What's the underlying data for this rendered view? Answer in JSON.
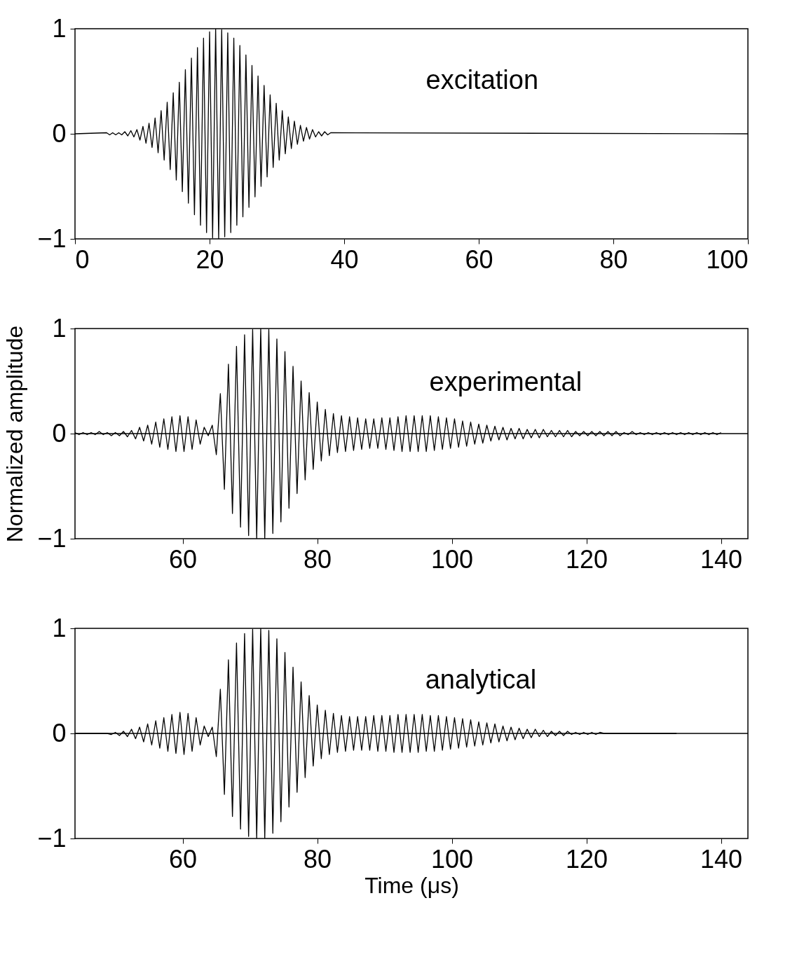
{
  "chart_data": [
    {
      "type": "line",
      "xlim": [
        0,
        100
      ],
      "xticks": [
        0,
        20,
        40,
        60,
        80,
        100
      ],
      "ylim": [
        -1,
        1
      ],
      "yticks": [
        -1,
        0,
        1
      ],
      "annotations": [
        "excitation"
      ],
      "x": [
        0,
        4.7,
        5.15,
        5.6,
        6.05,
        6.5,
        6.95,
        7.4,
        7.85,
        8.3,
        8.75,
        9.2,
        9.65,
        10.1,
        10.55,
        11,
        11.45,
        11.9,
        12.35,
        12.8,
        13.25,
        13.7,
        14.15,
        14.6,
        15.05,
        15.5,
        15.95,
        16.4,
        16.85,
        17.3,
        17.75,
        18.2,
        18.65,
        19.1,
        19.55,
        20,
        20.45,
        20.9,
        21.35,
        21.8,
        22.25,
        22.7,
        23.15,
        23.6,
        24.05,
        24.5,
        24.95,
        25.4,
        25.85,
        26.3,
        26.75,
        27.2,
        27.65,
        28.1,
        28.55,
        29,
        29.45,
        29.9,
        30.35,
        30.8,
        31.25,
        31.7,
        32.15,
        32.6,
        33.05,
        33.5,
        33.95,
        34.4,
        34.85,
        35.3,
        35.75,
        36.2,
        36.65,
        37.1,
        37.55,
        38,
        100
      ],
      "series": [
        {
          "color": "#000000",
          "values": [
            0,
            0.01,
            -0.01,
            0.01,
            -0.01,
            0.01,
            -0.01,
            0.02,
            -0.02,
            0.03,
            -0.03,
            0.04,
            -0.06,
            0.07,
            -0.09,
            0.1,
            -0.13,
            0.15,
            -0.18,
            0.22,
            -0.25,
            0.3,
            -0.34,
            0.39,
            -0.44,
            0.49,
            -0.55,
            0.61,
            -0.66,
            0.72,
            -0.77,
            0.82,
            -0.87,
            0.91,
            -0.94,
            0.97,
            -0.99,
            1,
            -1,
            0.99,
            -0.98,
            0.96,
            -0.94,
            0.91,
            -0.87,
            0.84,
            -0.79,
            0.75,
            -0.7,
            0.65,
            -0.6,
            0.55,
            -0.5,
            0.46,
            -0.41,
            0.37,
            -0.32,
            0.29,
            -0.25,
            0.22,
            -0.19,
            0.16,
            -0.14,
            0.12,
            -0.1,
            0.08,
            -0.07,
            0.06,
            -0.05,
            0.04,
            -0.03,
            0.02,
            -0.02,
            0.02,
            -0.01,
            0.01,
            0
          ]
        }
      ]
    },
    {
      "type": "line",
      "xlim": [
        44,
        144
      ],
      "xticks": [
        60,
        80,
        100,
        120,
        140
      ],
      "ylim": [
        -1,
        1
      ],
      "yticks": [
        -1,
        0,
        1
      ],
      "ylabel": "Normalized amplitude",
      "annotations": [
        "experimental"
      ],
      "ref_lines": [
        {
          "axis": "y",
          "value": 0
        }
      ],
      "x": [
        44,
        44.6,
        45.2,
        45.8,
        46.4,
        47,
        47.6,
        48.2,
        48.8,
        49.4,
        50,
        50.6,
        51.2,
        51.8,
        52.4,
        53,
        53.6,
        54.2,
        54.8,
        55.4,
        56,
        56.6,
        57.2,
        57.8,
        58.4,
        59,
        59.6,
        60.2,
        60.8,
        61.4,
        62,
        62.6,
        63.2,
        63.8,
        64.4,
        65,
        65.6,
        66.2,
        66.8,
        67.4,
        68,
        68.6,
        69.2,
        69.8,
        70.4,
        71,
        71.6,
        72.2,
        72.8,
        73.4,
        74,
        74.6,
        75.2,
        75.8,
        76.4,
        77,
        77.6,
        78.2,
        78.8,
        79.4,
        80,
        80.6,
        81.2,
        81.8,
        82.4,
        83,
        83.6,
        84.2,
        84.8,
        85.4,
        86,
        86.6,
        87.2,
        87.8,
        88.4,
        89,
        89.6,
        90.2,
        90.8,
        91.4,
        92,
        92.6,
        93.2,
        93.8,
        94.4,
        95,
        95.6,
        96.2,
        96.8,
        97.4,
        98,
        98.6,
        99.2,
        99.8,
        100.4,
        101,
        101.6,
        102.2,
        102.8,
        103.4,
        104,
        104.6,
        105.2,
        105.8,
        106.4,
        107,
        107.6,
        108.2,
        108.8,
        109.4,
        110,
        110.6,
        111.2,
        111.8,
        112.4,
        113,
        113.6,
        114.2,
        114.8,
        115.4,
        116,
        116.6,
        117.2,
        117.8,
        118.4,
        119,
        119.6,
        120.2,
        120.8,
        121.4,
        122,
        122.6,
        123.2,
        123.8,
        124.4,
        125,
        125.6,
        126.2,
        126.8,
        127.4,
        128,
        128.6,
        129.2,
        129.8,
        130.4,
        131,
        131.6,
        132.2,
        132.8,
        133.4,
        134,
        134.6,
        135.2,
        135.8,
        136.4,
        137,
        137.6,
        138.2,
        138.8,
        139.4,
        140
      ],
      "series": [
        {
          "color": "#000000",
          "values": [
            0.01,
            -0.01,
            0.01,
            -0.01,
            0.01,
            -0.01,
            0.02,
            -0.01,
            0.01,
            -0.02,
            0.01,
            -0.02,
            0.02,
            -0.03,
            0.03,
            -0.05,
            0.06,
            -0.07,
            0.08,
            -0.1,
            0.11,
            -0.13,
            0.14,
            -0.15,
            0.16,
            -0.17,
            0.17,
            -0.17,
            0.16,
            -0.15,
            0.13,
            -0.1,
            0.06,
            -0.02,
            0.08,
            -0.2,
            0.38,
            -0.53,
            0.66,
            -0.76,
            0.83,
            -0.89,
            0.94,
            -0.97,
            0.99,
            -1,
            1,
            -1,
            0.99,
            -0.95,
            0.9,
            -0.84,
            0.78,
            -0.71,
            0.64,
            -0.57,
            0.5,
            -0.44,
            0.39,
            -0.34,
            0.3,
            -0.26,
            0.23,
            -0.21,
            0.19,
            -0.18,
            0.17,
            -0.17,
            0.16,
            -0.16,
            0.15,
            -0.15,
            0.14,
            -0.14,
            0.14,
            -0.14,
            0.15,
            -0.15,
            0.15,
            -0.16,
            0.16,
            -0.17,
            0.17,
            -0.17,
            0.17,
            -0.17,
            0.17,
            -0.17,
            0.17,
            -0.16,
            0.16,
            -0.15,
            0.15,
            -0.14,
            0.14,
            -0.13,
            0.12,
            -0.12,
            0.11,
            -0.1,
            0.09,
            -0.09,
            0.08,
            -0.07,
            0.07,
            -0.06,
            0.06,
            -0.06,
            0.05,
            -0.05,
            0.05,
            -0.05,
            0.04,
            -0.04,
            0.04,
            -0.04,
            0.04,
            -0.03,
            0.03,
            -0.03,
            0.03,
            -0.03,
            0.03,
            -0.03,
            0.02,
            -0.02,
            0.02,
            -0.02,
            0.02,
            -0.02,
            0.02,
            -0.02,
            0.02,
            -0.02,
            0.02,
            -0.02,
            0.01,
            -0.01,
            0.02,
            -0.01,
            0.01,
            -0.01,
            0.01,
            -0.01,
            0.01,
            -0.01,
            0.01,
            -0.01,
            0.01,
            -0.01,
            0.01,
            -0.01,
            0.01,
            -0.01,
            0.01,
            -0.01,
            0.01,
            -0.01,
            0.01,
            -0.01,
            0.01
          ]
        }
      ]
    },
    {
      "type": "line",
      "xlim": [
        44,
        144
      ],
      "xticks": [
        60,
        80,
        100,
        120,
        140
      ],
      "ylim": [
        -1,
        1
      ],
      "yticks": [
        -1,
        0,
        1
      ],
      "xlabel": "Time (μs)",
      "annotations": [
        "analytical"
      ],
      "ref_lines": [
        {
          "axis": "y",
          "value": 0
        }
      ],
      "x": [
        44,
        44.6,
        45.2,
        45.8,
        46.4,
        47,
        47.6,
        48.2,
        48.8,
        49.4,
        50,
        50.6,
        51.2,
        51.8,
        52.4,
        53,
        53.6,
        54.2,
        54.8,
        55.4,
        56,
        56.6,
        57.2,
        57.8,
        58.4,
        59,
        59.6,
        60.2,
        60.8,
        61.4,
        62,
        62.6,
        63.2,
        63.8,
        64.4,
        65,
        65.6,
        66.2,
        66.8,
        67.4,
        68,
        68.6,
        69.2,
        69.8,
        70.4,
        71,
        71.6,
        72.2,
        72.8,
        73.4,
        74,
        74.6,
        75.2,
        75.8,
        76.4,
        77,
        77.6,
        78.2,
        78.8,
        79.4,
        80,
        80.6,
        81.2,
        81.8,
        82.4,
        83,
        83.6,
        84.2,
        84.8,
        85.4,
        86,
        86.6,
        87.2,
        87.8,
        88.4,
        89,
        89.6,
        90.2,
        90.8,
        91.4,
        92,
        92.6,
        93.2,
        93.8,
        94.4,
        95,
        95.6,
        96.2,
        96.8,
        97.4,
        98,
        98.6,
        99.2,
        99.8,
        100.4,
        101,
        101.6,
        102.2,
        102.8,
        103.4,
        104,
        104.6,
        105.2,
        105.8,
        106.4,
        107,
        107.6,
        108.2,
        108.8,
        109.4,
        110,
        110.6,
        111.2,
        111.8,
        112.4,
        113,
        113.6,
        114.2,
        114.8,
        115.4,
        116,
        116.6,
        117.2,
        117.8,
        118.4,
        119,
        119.6,
        120.2,
        120.8,
        121.4,
        122,
        122.6,
        123.2,
        123.8,
        124.4,
        125,
        125.6,
        126.2,
        126.8,
        127.4,
        128,
        128.6,
        129.2,
        129.8,
        130.4,
        131,
        131.6,
        132.2,
        132.8,
        133.4
      ],
      "series": [
        {
          "color": "#000000",
          "values": [
            0,
            0,
            0,
            0,
            0,
            0,
            0,
            0,
            0,
            -0.01,
            0.01,
            -0.02,
            0.02,
            -0.03,
            0.04,
            -0.05,
            0.06,
            -0.08,
            0.09,
            -0.11,
            0.12,
            -0.14,
            0.15,
            -0.17,
            0.18,
            -0.19,
            0.2,
            -0.2,
            0.19,
            -0.17,
            0.15,
            -0.11,
            0.07,
            -0.03,
            0.06,
            -0.22,
            0.42,
            -0.58,
            0.7,
            -0.79,
            0.86,
            -0.91,
            0.95,
            -0.98,
            0.99,
            -1,
            1,
            -1,
            0.98,
            -0.95,
            0.9,
            -0.84,
            0.77,
            -0.7,
            0.63,
            -0.56,
            0.49,
            -0.42,
            0.36,
            -0.31,
            0.27,
            -0.24,
            0.22,
            -0.2,
            0.19,
            -0.18,
            0.17,
            -0.17,
            0.16,
            -0.16,
            0.16,
            -0.16,
            0.16,
            -0.16,
            0.17,
            -0.17,
            0.17,
            -0.17,
            0.17,
            -0.18,
            0.18,
            -0.18,
            0.18,
            -0.18,
            0.18,
            -0.18,
            0.18,
            -0.17,
            0.17,
            -0.17,
            0.17,
            -0.16,
            0.16,
            -0.15,
            0.15,
            -0.14,
            0.14,
            -0.13,
            0.13,
            -0.12,
            0.11,
            -0.11,
            0.1,
            -0.09,
            0.09,
            -0.08,
            0.07,
            -0.07,
            0.06,
            -0.06,
            0.05,
            -0.05,
            0.04,
            -0.04,
            0.04,
            -0.03,
            0.03,
            -0.03,
            0.02,
            -0.02,
            0.02,
            -0.02,
            0.02,
            -0.01,
            0.01,
            -0.01,
            0.01,
            -0.01,
            0.01,
            -0.01,
            0.01,
            0,
            0,
            0,
            0,
            0,
            0,
            0,
            0,
            0,
            0,
            0,
            0,
            0,
            0,
            0,
            0,
            0,
            0,
            0
          ]
        }
      ]
    }
  ]
}
